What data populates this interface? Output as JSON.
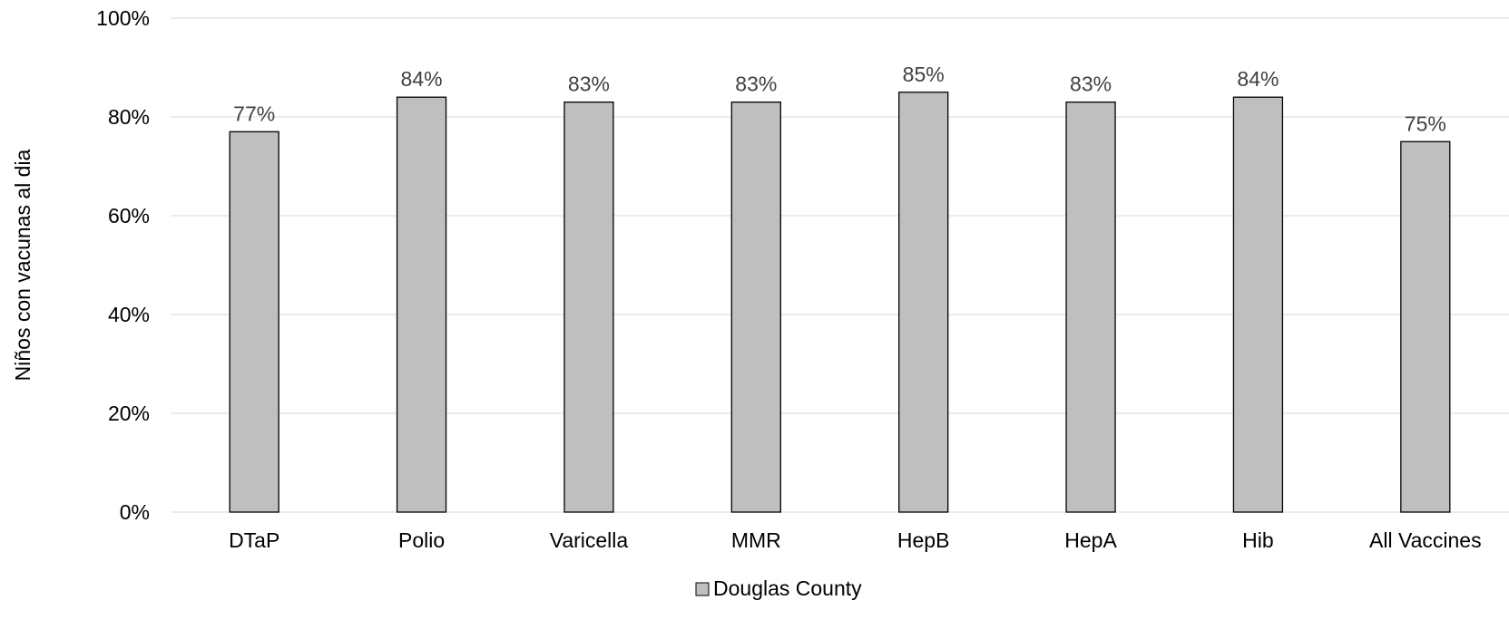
{
  "chart_data": {
    "type": "bar",
    "title": "",
    "xlabel": "",
    "ylabel": "Niños con vacunas al dia",
    "categories": [
      "DTaP",
      "Polio",
      "Varicella",
      "MMR",
      "HepB",
      "HepA",
      "Hib",
      "All Vaccines"
    ],
    "series": [
      {
        "name": "Douglas County",
        "values": [
          77,
          84,
          83,
          83,
          85,
          83,
          84,
          75
        ],
        "labels": [
          "77%",
          "84%",
          "83%",
          "83%",
          "85%",
          "83%",
          "84%",
          "75%"
        ],
        "color": "#bfbfbf"
      }
    ],
    "ylim": [
      0,
      100
    ],
    "yticks": [
      0,
      20,
      40,
      60,
      80,
      100
    ],
    "ytick_labels": [
      "0%",
      "20%",
      "40%",
      "60%",
      "80%",
      "100%"
    ],
    "grid": true,
    "legend_position": "bottom"
  }
}
